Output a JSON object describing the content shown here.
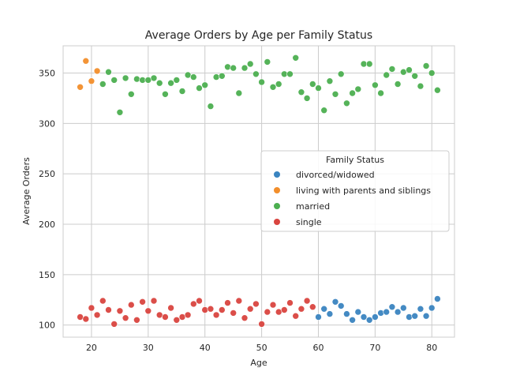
{
  "chart_data": {
    "type": "scatter",
    "title": "Average Orders by Age per Family Status",
    "xlabel": "Age",
    "ylabel": "Average Orders",
    "xlim": [
      15,
      84
    ],
    "ylim": [
      88,
      377
    ],
    "xticks": [
      20,
      30,
      40,
      50,
      60,
      70,
      80
    ],
    "yticks": [
      100,
      150,
      200,
      250,
      300,
      350
    ],
    "grid": true,
    "legend": {
      "title": "Family Status",
      "placement": "center-right"
    },
    "series": [
      {
        "name": "divorced/widowed",
        "color": "#3a84c0",
        "points": [
          [
            60,
            108
          ],
          [
            61,
            116
          ],
          [
            62,
            111
          ],
          [
            63,
            123
          ],
          [
            64,
            119
          ],
          [
            65,
            111
          ],
          [
            66,
            105
          ],
          [
            67,
            113
          ],
          [
            68,
            108
          ],
          [
            69,
            105
          ],
          [
            70,
            108
          ],
          [
            71,
            112
          ],
          [
            72,
            113
          ],
          [
            73,
            118
          ],
          [
            74,
            113
          ],
          [
            75,
            117
          ],
          [
            76,
            108
          ],
          [
            77,
            109
          ],
          [
            78,
            116
          ],
          [
            79,
            109
          ],
          [
            80,
            117
          ],
          [
            81,
            126
          ]
        ]
      },
      {
        "name": "living with parents and siblings",
        "color": "#f28e2b",
        "points": [
          [
            18,
            336
          ],
          [
            19,
            362
          ],
          [
            20,
            342
          ],
          [
            21,
            352
          ]
        ]
      },
      {
        "name": "married",
        "color": "#4caf50",
        "points": [
          [
            22,
            339
          ],
          [
            23,
            351
          ],
          [
            24,
            343
          ],
          [
            25,
            311
          ],
          [
            26,
            345
          ],
          [
            27,
            329
          ],
          [
            28,
            344
          ],
          [
            29,
            343
          ],
          [
            30,
            343
          ],
          [
            31,
            345
          ],
          [
            32,
            340
          ],
          [
            33,
            329
          ],
          [
            34,
            340
          ],
          [
            35,
            343
          ],
          [
            36,
            332
          ],
          [
            37,
            348
          ],
          [
            38,
            346
          ],
          [
            39,
            335
          ],
          [
            40,
            338
          ],
          [
            41,
            317
          ],
          [
            42,
            346
          ],
          [
            43,
            347
          ],
          [
            44,
            356
          ],
          [
            45,
            355
          ],
          [
            46,
            330
          ],
          [
            47,
            355
          ],
          [
            48,
            359
          ],
          [
            49,
            349
          ],
          [
            50,
            341
          ],
          [
            51,
            361
          ],
          [
            52,
            336
          ],
          [
            53,
            339
          ],
          [
            54,
            349
          ],
          [
            55,
            349
          ],
          [
            56,
            365
          ],
          [
            57,
            331
          ],
          [
            58,
            325
          ],
          [
            59,
            339
          ],
          [
            60,
            335
          ],
          [
            61,
            313
          ],
          [
            62,
            342
          ],
          [
            63,
            329
          ],
          [
            64,
            349
          ],
          [
            65,
            320
          ],
          [
            66,
            330
          ],
          [
            67,
            334
          ],
          [
            68,
            359
          ],
          [
            69,
            359
          ],
          [
            70,
            338
          ],
          [
            71,
            330
          ],
          [
            72,
            348
          ],
          [
            73,
            354
          ],
          [
            74,
            339
          ],
          [
            75,
            351
          ],
          [
            76,
            353
          ],
          [
            77,
            347
          ],
          [
            78,
            337
          ],
          [
            79,
            357
          ],
          [
            80,
            350
          ],
          [
            81,
            333
          ]
        ]
      },
      {
        "name": "single",
        "color": "#d9443f",
        "points": [
          [
            18,
            108
          ],
          [
            19,
            106
          ],
          [
            20,
            117
          ],
          [
            21,
            110
          ],
          [
            22,
            124
          ],
          [
            23,
            115
          ],
          [
            24,
            101
          ],
          [
            25,
            114
          ],
          [
            26,
            107
          ],
          [
            27,
            120
          ],
          [
            28,
            105
          ],
          [
            29,
            123
          ],
          [
            30,
            114
          ],
          [
            31,
            124
          ],
          [
            32,
            110
          ],
          [
            33,
            108
          ],
          [
            34,
            117
          ],
          [
            35,
            105
          ],
          [
            36,
            108
          ],
          [
            37,
            110
          ],
          [
            38,
            121
          ],
          [
            39,
            124
          ],
          [
            40,
            115
          ],
          [
            41,
            116
          ],
          [
            42,
            110
          ],
          [
            43,
            115
          ],
          [
            44,
            122
          ],
          [
            45,
            112
          ],
          [
            46,
            124
          ],
          [
            47,
            107
          ],
          [
            48,
            116
          ],
          [
            49,
            121
          ],
          [
            50,
            101
          ],
          [
            51,
            113
          ],
          [
            52,
            120
          ],
          [
            53,
            113
          ],
          [
            54,
            115
          ],
          [
            55,
            122
          ],
          [
            56,
            109
          ],
          [
            57,
            116
          ],
          [
            58,
            124
          ],
          [
            59,
            118
          ]
        ]
      }
    ]
  }
}
